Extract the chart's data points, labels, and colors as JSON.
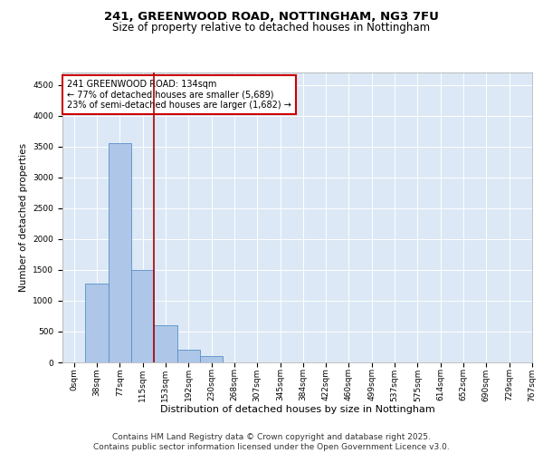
{
  "title_line1": "241, GREENWOOD ROAD, NOTTINGHAM, NG3 7FU",
  "title_line2": "Size of property relative to detached houses in Nottingham",
  "xlabel": "Distribution of detached houses by size in Nottingham",
  "ylabel": "Number of detached properties",
  "bar_values": [
    0,
    1280,
    3560,
    1500,
    600,
    200,
    110,
    0,
    0,
    0,
    0,
    0,
    0,
    0,
    0,
    0,
    0,
    0,
    0,
    0
  ],
  "bin_labels": [
    "0sqm",
    "38sqm",
    "77sqm",
    "115sqm",
    "153sqm",
    "192sqm",
    "230sqm",
    "268sqm",
    "307sqm",
    "345sqm",
    "384sqm",
    "422sqm",
    "460sqm",
    "499sqm",
    "537sqm",
    "575sqm",
    "614sqm",
    "652sqm",
    "690sqm",
    "729sqm",
    "767sqm"
  ],
  "bar_color": "#aec6e8",
  "bar_edge_color": "#5590c8",
  "vline_x": 3.5,
  "vline_color": "#aa0000",
  "annotation_text": "241 GREENWOOD ROAD: 134sqm\n← 77% of detached houses are smaller (5,689)\n23% of semi-detached houses are larger (1,682) →",
  "annotation_box_color": "#cc0000",
  "ylim": [
    0,
    4700
  ],
  "yticks": [
    0,
    500,
    1000,
    1500,
    2000,
    2500,
    3000,
    3500,
    4000,
    4500
  ],
  "background_color": "#dce8f5",
  "footer_text": "Contains HM Land Registry data © Crown copyright and database right 2025.\nContains public sector information licensed under the Open Government Licence v3.0.",
  "title_fontsize": 9.5,
  "subtitle_fontsize": 8.5,
  "xlabel_fontsize": 8,
  "ylabel_fontsize": 7.5,
  "tick_fontsize": 6.5,
  "footer_fontsize": 6.5,
  "ann_fontsize": 7
}
